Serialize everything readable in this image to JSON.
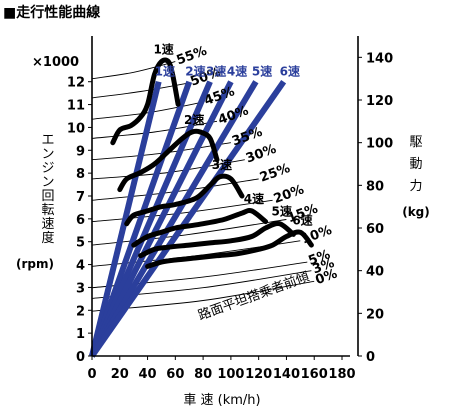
{
  "title": "■走行性能曲線",
  "chart_data": {
    "type": "line",
    "title": "走行性能曲線",
    "xlabel": "車 速 (km/h)",
    "x_ticks": [
      0,
      20,
      40,
      60,
      80,
      100,
      120,
      140,
      160,
      180
    ],
    "xlim": [
      0,
      180
    ],
    "ylabel_left": "エンジン回転速度",
    "ylabel_left_unit": "(rpm)",
    "y_multiplier": "×1000",
    "y_left_ticks": [
      0,
      1,
      2,
      3,
      4,
      5,
      6,
      7,
      8,
      9,
      10,
      11,
      12
    ],
    "ylim_left": [
      0,
      14
    ],
    "ylabel_right": "駆動力",
    "ylabel_right_unit": "(kg)",
    "y_right_ticks": [
      0,
      20,
      40,
      60,
      80,
      100,
      120,
      140
    ],
    "ylim_right": [
      0,
      150
    ],
    "grade_label": "路面平坦搭乗者前傾",
    "gear_speed_lines": [
      {
        "name": "1速",
        "x": [
          0,
          48
        ],
        "y": [
          0,
          12
        ]
      },
      {
        "name": "2速",
        "x": [
          0,
          70
        ],
        "y": [
          0,
          12
        ]
      },
      {
        "name": "3速",
        "x": [
          0,
          85
        ],
        "y": [
          0,
          12
        ]
      },
      {
        "name": "4速",
        "x": [
          0,
          100
        ],
        "y": [
          0,
          12
        ]
      },
      {
        "name": "5速",
        "x": [
          0,
          118
        ],
        "y": [
          0,
          12
        ]
      },
      {
        "name": "6速",
        "x": [
          0,
          138
        ],
        "y": [
          0,
          12
        ]
      }
    ],
    "driving_force_curves": [
      {
        "name": "1速",
        "x": [
          15,
          20,
          28,
          35,
          40,
          45,
          50,
          55,
          58,
          62
        ],
        "y": [
          100,
          106,
          108,
          112,
          118,
          132,
          138,
          138,
          132,
          118
        ]
      },
      {
        "name": "2速",
        "x": [
          20,
          25,
          35,
          45,
          55,
          65,
          72,
          78,
          85,
          90
        ],
        "y": [
          78,
          83,
          86,
          90,
          96,
          102,
          105,
          105,
          102,
          92
        ]
      },
      {
        "name": "3速",
        "x": [
          25,
          30,
          40,
          50,
          60,
          75,
          85,
          92,
          100,
          108
        ],
        "y": [
          62,
          66,
          68,
          70,
          71,
          74,
          80,
          84,
          83,
          75
        ]
      },
      {
        "name": "4速",
        "x": [
          30,
          40,
          50,
          60,
          70,
          80,
          95,
          108,
          115,
          125
        ],
        "y": [
          52,
          56,
          58,
          60,
          61,
          62,
          64,
          67,
          68,
          63
        ]
      },
      {
        "name": "5速",
        "x": [
          35,
          45,
          55,
          70,
          85,
          100,
          115,
          125,
          135,
          145
        ],
        "y": [
          47,
          50,
          51,
          52,
          53,
          54,
          56,
          60,
          62,
          57
        ]
      },
      {
        "name": "6速",
        "x": [
          40,
          50,
          60,
          75,
          90,
          105,
          120,
          130,
          140,
          150,
          158
        ],
        "y": [
          42,
          44,
          45,
          46,
          47,
          48,
          50,
          52,
          56,
          58,
          52
        ]
      }
    ],
    "running_resistance_curves": [
      {
        "name": "55%",
        "x": [
          0,
          30,
          60
        ],
        "y": [
          130,
          133,
          138
        ]
      },
      {
        "name": "50%",
        "x": [
          0,
          35,
          70
        ],
        "y": [
          121,
          124,
          128
        ]
      },
      {
        "name": "45%",
        "x": [
          0,
          40,
          80
        ],
        "y": [
          111,
          114,
          119
        ]
      },
      {
        "name": "40%",
        "x": [
          0,
          45,
          90
        ],
        "y": [
          102,
          105,
          110
        ]
      },
      {
        "name": "35%",
        "x": [
          0,
          50,
          100
        ],
        "y": [
          92,
          95,
          100
        ]
      },
      {
        "name": "30%",
        "x": [
          0,
          55,
          110
        ],
        "y": [
          83,
          86,
          92
        ]
      },
      {
        "name": "25%",
        "x": [
          0,
          60,
          120
        ],
        "y": [
          73,
          77,
          83
        ]
      },
      {
        "name": "20%",
        "x": [
          0,
          65,
          130
        ],
        "y": [
          63,
          67,
          73
        ]
      },
      {
        "name": "15%",
        "x": [
          0,
          70,
          140
        ],
        "y": [
          52,
          57,
          64
        ]
      },
      {
        "name": "10%",
        "x": [
          0,
          75,
          150
        ],
        "y": [
          42,
          47,
          54
        ]
      },
      {
        "name": "5%",
        "x": [
          0,
          80,
          155
        ],
        "y": [
          32,
          37,
          44
        ]
      },
      {
        "name": "3%",
        "x": [
          0,
          80,
          158
        ],
        "y": [
          27,
          32,
          40
        ]
      },
      {
        "name": "0%",
        "x": [
          0,
          80,
          160
        ],
        "y": [
          21,
          26,
          35
        ]
      }
    ],
    "colors": {
      "gear_lines": "#2b3f9c",
      "gear_labels": "#2b3f9c",
      "force_curves": "#000000",
      "resistance_curves": "#000000"
    },
    "grid": false,
    "legend": "none"
  }
}
